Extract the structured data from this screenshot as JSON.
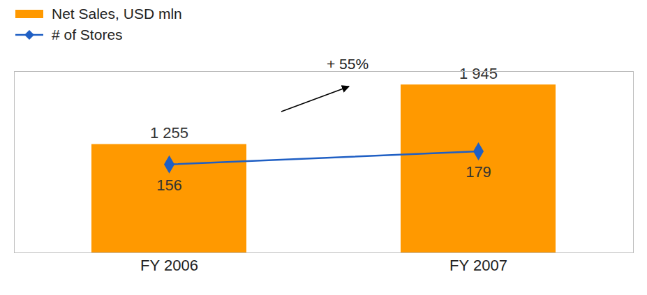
{
  "chart_data": {
    "type": "bar",
    "categories": [
      "FY 2006",
      "FY 2007"
    ],
    "series": [
      {
        "name": "Net Sales, USD mln",
        "type": "bar",
        "color": "#FF9900",
        "values": [
          1255,
          1945
        ],
        "value_labels": [
          "1 255",
          "1 945"
        ]
      },
      {
        "name": "# of Stores",
        "type": "line",
        "color": "#1F5FC4",
        "marker": "diamond",
        "axis": "y2",
        "values": [
          156,
          179
        ]
      }
    ],
    "ylim": [
      0,
      2100
    ],
    "y2lim": [
      0,
      320
    ],
    "data_labels": true,
    "tick_labels": "x",
    "legend": "top-left",
    "annotations": [
      {
        "text": "+ 55%"
      }
    ]
  }
}
